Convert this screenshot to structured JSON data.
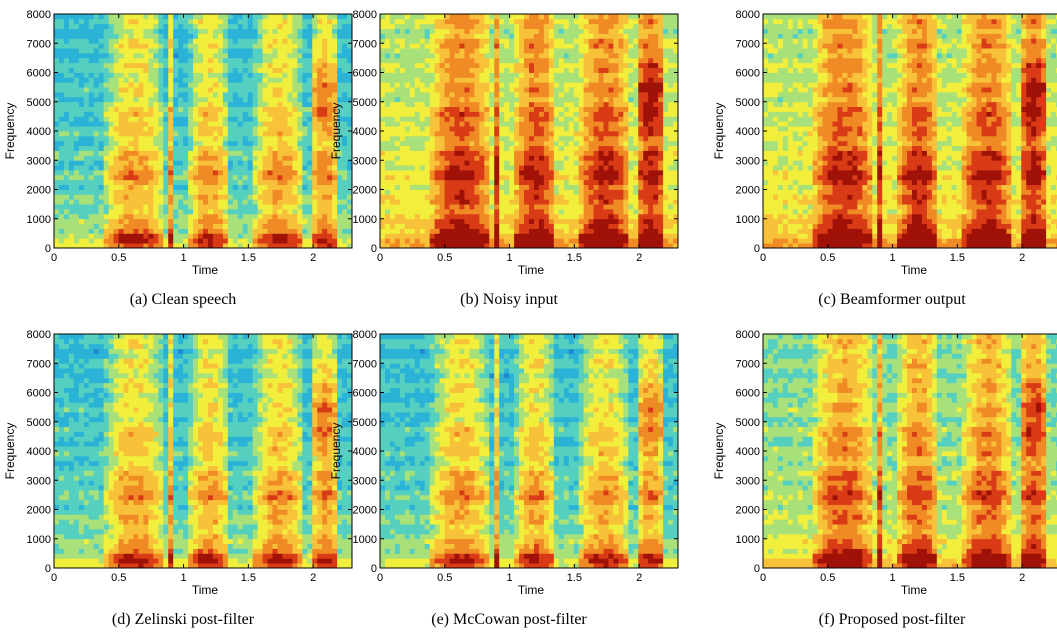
{
  "figure": {
    "colormap": [
      "#1f8ad0",
      "#2ab3d6",
      "#55d0c0",
      "#a8e07a",
      "#f2ee3c",
      "#f7c23a",
      "#f08a24",
      "#d83b16",
      "#a01208"
    ]
  },
  "chart_data": [
    {
      "type": "heatmap",
      "caption": "(a) Clean speech",
      "xlabel": "Time",
      "ylabel": "Frequency",
      "xlim": [
        0,
        2.3
      ],
      "ylim": [
        0,
        8000
      ],
      "xticks": [
        0,
        0.5,
        1,
        1.5,
        2
      ],
      "yticks": [
        0,
        1000,
        2000,
        3000,
        4000,
        5000,
        6000,
        7000,
        8000
      ],
      "noise_floor": "low",
      "speech_segments": [
        [
          0.4,
          0.85
        ],
        [
          0.88,
          0.93
        ],
        [
          1.05,
          1.35
        ],
        [
          1.55,
          1.92
        ],
        [
          1.98,
          2.2
        ]
      ]
    },
    {
      "type": "heatmap",
      "caption": "(b) Noisy input",
      "xlabel": "Time",
      "ylabel": "Frequency",
      "xlim": [
        0,
        2.3
      ],
      "ylim": [
        0,
        8000
      ],
      "xticks": [
        0,
        0.5,
        1,
        1.5,
        2
      ],
      "yticks": [
        0,
        1000,
        2000,
        3000,
        4000,
        5000,
        6000,
        7000,
        8000
      ],
      "noise_floor": "high",
      "speech_segments": [
        [
          0.4,
          0.85
        ],
        [
          0.88,
          0.93
        ],
        [
          1.05,
          1.35
        ],
        [
          1.55,
          1.92
        ],
        [
          1.98,
          2.2
        ]
      ]
    },
    {
      "type": "heatmap",
      "caption": "(c) Beamformer output",
      "xlabel": "Time",
      "ylabel": "Frequency",
      "xlim": [
        0,
        2.3
      ],
      "ylim": [
        0,
        8000
      ],
      "xticks": [
        0,
        0.5,
        1,
        1.5,
        2
      ],
      "yticks": [
        0,
        1000,
        2000,
        3000,
        4000,
        5000,
        6000,
        7000,
        8000
      ],
      "noise_floor": "high",
      "speech_segments": [
        [
          0.4,
          0.85
        ],
        [
          0.88,
          0.93
        ],
        [
          1.05,
          1.35
        ],
        [
          1.55,
          1.92
        ],
        [
          1.98,
          2.2
        ]
      ]
    },
    {
      "type": "heatmap",
      "caption": "(d) Zelinski post-filter",
      "xlabel": "Time",
      "ylabel": "Frequency",
      "xlim": [
        0,
        2.3
      ],
      "ylim": [
        0,
        8000
      ],
      "xticks": [
        0,
        0.5,
        1,
        1.5,
        2
      ],
      "yticks": [
        0,
        1000,
        2000,
        3000,
        4000,
        5000,
        6000,
        7000,
        8000
      ],
      "noise_floor": "low",
      "speech_segments": [
        [
          0.4,
          0.85
        ],
        [
          0.88,
          0.93
        ],
        [
          1.05,
          1.35
        ],
        [
          1.55,
          1.92
        ],
        [
          1.98,
          2.2
        ]
      ]
    },
    {
      "type": "heatmap",
      "caption": "(e) McCowan post-filter",
      "xlabel": "Time",
      "ylabel": "Frequency",
      "xlim": [
        0,
        2.3
      ],
      "ylim": [
        0,
        8000
      ],
      "xticks": [
        0,
        0.5,
        1,
        1.5,
        2
      ],
      "yticks": [
        0,
        1000,
        2000,
        3000,
        4000,
        5000,
        6000,
        7000,
        8000
      ],
      "noise_floor": "low",
      "speech_segments": [
        [
          0.4,
          0.85
        ],
        [
          0.88,
          0.93
        ],
        [
          1.05,
          1.35
        ],
        [
          1.55,
          1.92
        ],
        [
          1.98,
          2.2
        ]
      ]
    },
    {
      "type": "heatmap",
      "caption": "(f) Proposed post-filter",
      "xlabel": "Time",
      "ylabel": "Frequency",
      "xlim": [
        0,
        2.3
      ],
      "ylim": [
        0,
        8000
      ],
      "xticks": [
        0,
        0.5,
        1,
        1.5,
        2
      ],
      "yticks": [
        0,
        1000,
        2000,
        3000,
        4000,
        5000,
        6000,
        7000,
        8000
      ],
      "noise_floor": "medium",
      "speech_segments": [
        [
          0.4,
          0.85
        ],
        [
          0.88,
          0.93
        ],
        [
          1.05,
          1.35
        ],
        [
          1.55,
          1.92
        ],
        [
          1.98,
          2.2
        ]
      ]
    }
  ]
}
